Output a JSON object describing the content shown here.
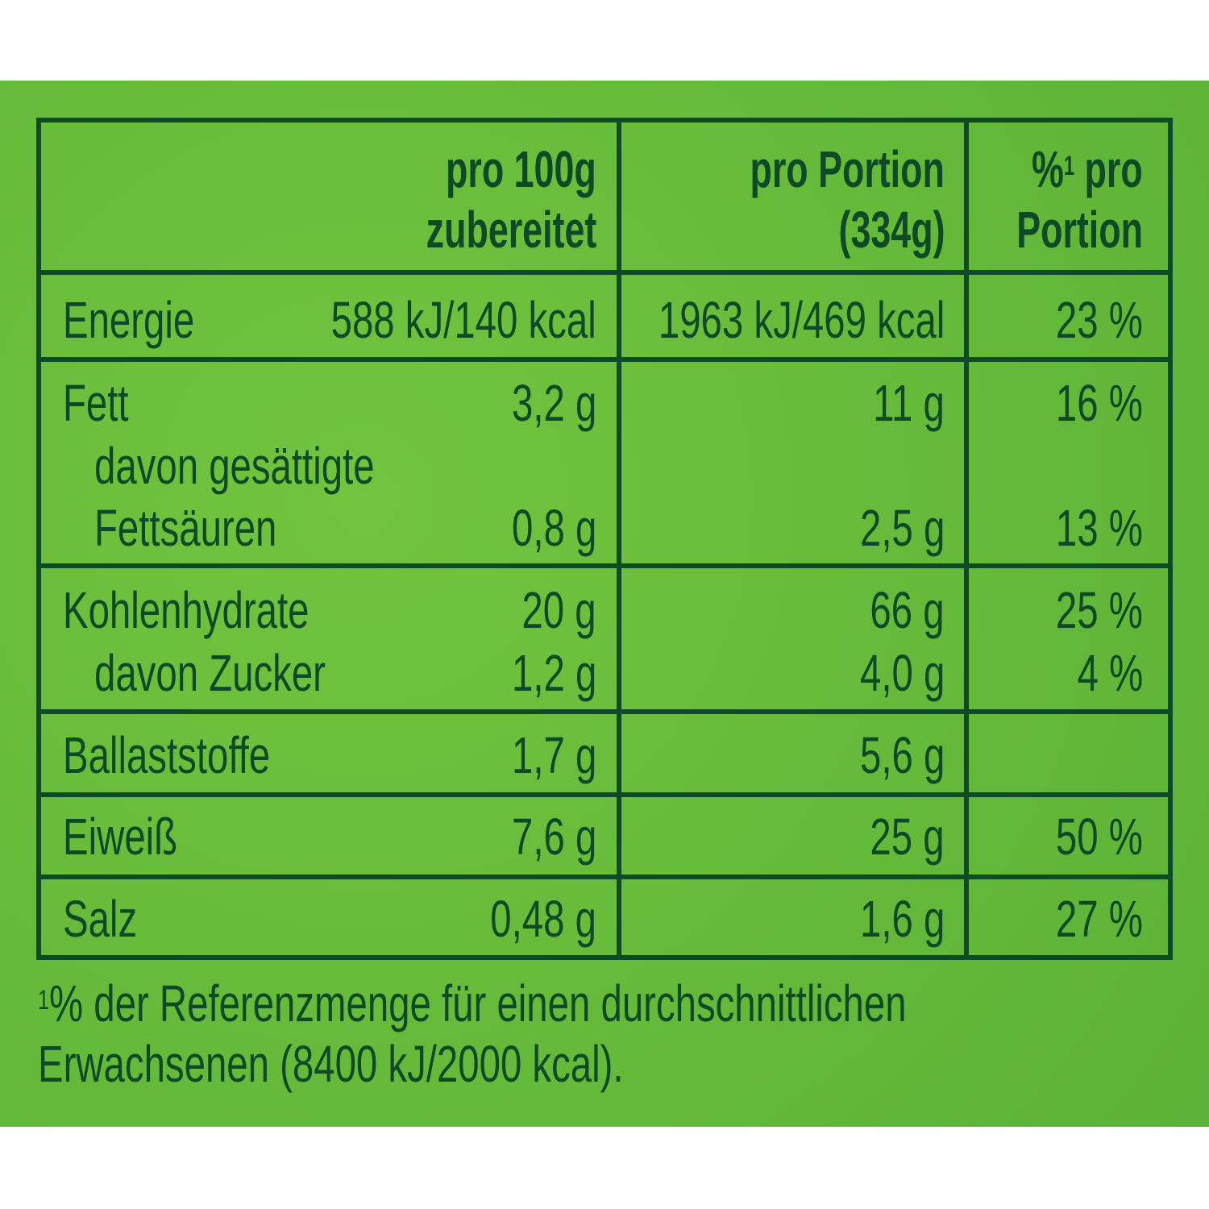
{
  "colors": {
    "background": "#66bb3a",
    "text": "#0f4a26"
  },
  "header": {
    "col1": [
      "pro 100g",
      "zubereitet"
    ],
    "col2": [
      "pro Portion",
      "(334g)"
    ],
    "col3_line1_symbol": "%",
    "col3_line1_sup": "1",
    "col3_line1_rest": " pro",
    "col3_line2": "Portion"
  },
  "rows": [
    {
      "label": "Energie",
      "per100": "588 kJ/140 kcal",
      "portion": "1963 kJ/469 kcal",
      "pct": "23 %"
    },
    {
      "label": "Fett",
      "per100": "3,2 g",
      "portion": "11 g",
      "pct": "16 %"
    },
    {
      "label": "davon gesättigte",
      "label2": "Fettsäuren",
      "per100": "0,8 g",
      "portion": "2,5 g",
      "pct": "13 %"
    },
    {
      "label": "Kohlenhydrate",
      "per100": "20 g",
      "portion": "66 g",
      "pct": "25 %"
    },
    {
      "label": "davon Zucker",
      "per100": "1,2 g",
      "portion": "4,0 g",
      "pct": "4 %"
    },
    {
      "label": "Ballaststoffe",
      "per100": "1,7 g",
      "portion": "5,6 g",
      "pct": ""
    },
    {
      "label": "Eiweiß",
      "per100": "7,6 g",
      "portion": "25 g",
      "pct": "50 %"
    },
    {
      "label": "Salz",
      "per100": "0,48 g",
      "portion": "1,6 g",
      "pct": "27 %"
    }
  ],
  "footnote": {
    "sup": "1",
    "line1": "% der Referenzmenge für einen durchschnittlichen",
    "line2": "Erwachsenen (8400 kJ/2000 kcal)."
  }
}
